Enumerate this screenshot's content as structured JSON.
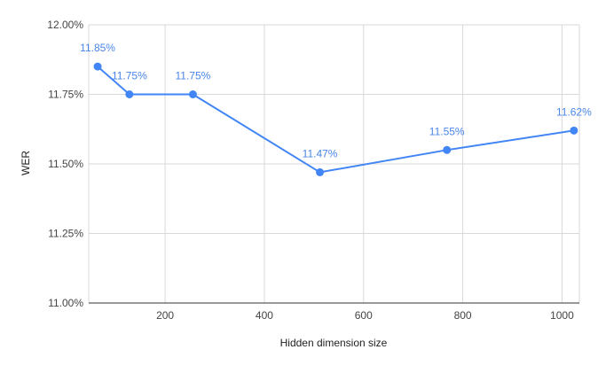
{
  "chart_data": {
    "type": "line",
    "title": "",
    "xlabel": "Hidden dimension size",
    "ylabel": "WER",
    "x": [
      64,
      128,
      256,
      512,
      768,
      1024
    ],
    "series": [
      {
        "values": [
          11.85,
          11.75,
          11.75,
          11.47,
          11.55,
          11.62
        ],
        "data_labels": [
          "11.85%",
          "11.75%",
          "11.75%",
          "11.47%",
          "11.55%",
          "11.62%"
        ],
        "color": "#4285f4"
      }
    ],
    "xlim": [
      46,
      1035
    ],
    "ylim": [
      11.0,
      12.0
    ],
    "xticks": [
      200,
      400,
      600,
      800,
      1000
    ],
    "xtick_labels": [
      "200",
      "400",
      "600",
      "800",
      "1000"
    ],
    "yticks": [
      11.0,
      11.25,
      11.5,
      11.75,
      12.0
    ],
    "ytick_labels": [
      "11.00%",
      "11.25%",
      "11.50%",
      "11.75%",
      "12.00%"
    ],
    "grid": true,
    "legend": "none",
    "colors": {
      "line": "#4285f4",
      "label": "#4a86e8",
      "grid": "#d9d9d9",
      "axis": "#333333"
    }
  }
}
